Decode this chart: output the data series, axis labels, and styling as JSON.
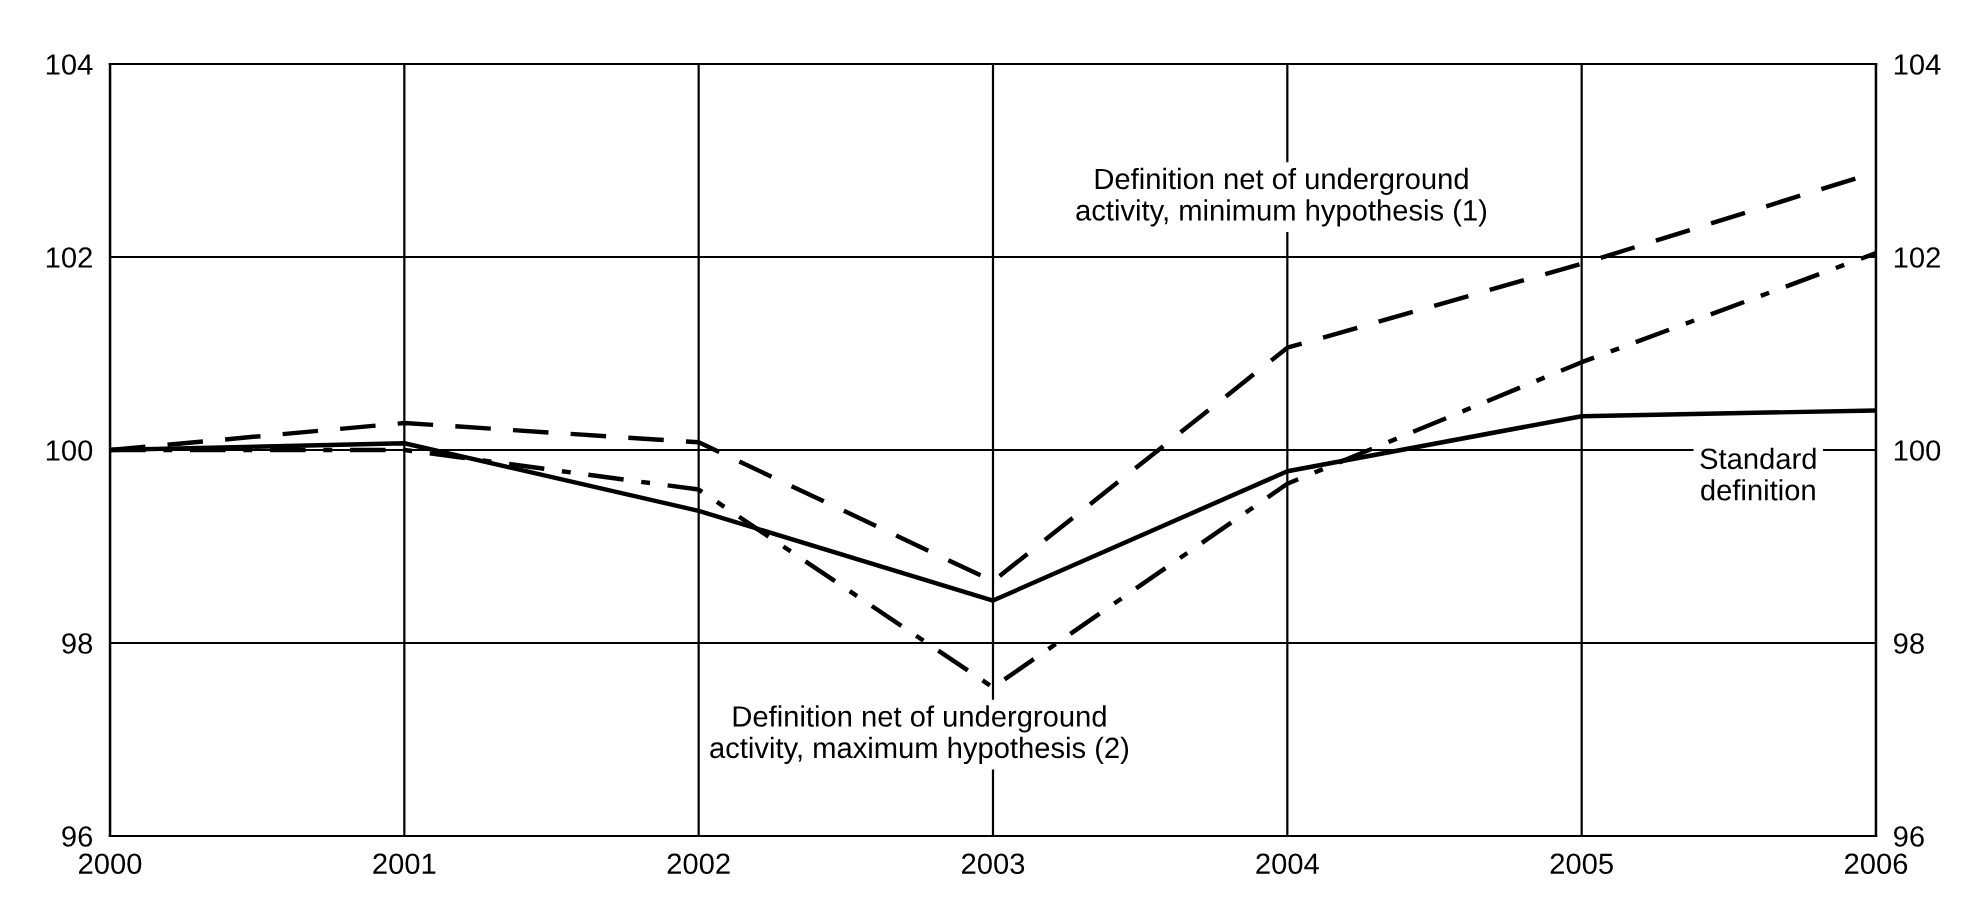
{
  "chart_data": {
    "type": "line",
    "x": [
      2000,
      2001,
      2002,
      2003,
      2004,
      2005,
      2006
    ],
    "series": [
      {
        "name": "Standard definition",
        "color": "#000000",
        "line_style": "solid",
        "values": [
          100,
          100.07,
          99.37,
          98.44,
          99.78,
          100.35,
          100.41
        ]
      },
      {
        "name": "Definition net of underground activity, minimum hypothesis (1)",
        "color": "#000000",
        "line_style": "dashed",
        "values": [
          100,
          100.28,
          100.08,
          98.64,
          101.06,
          101.93,
          102.88
        ]
      },
      {
        "name": "Definition net of underground activity, maximum hypothesis (2)",
        "color": "#000000",
        "line_style": "dashdot",
        "values": [
          100,
          100.0,
          99.59,
          97.54,
          99.65,
          100.91,
          102.04
        ]
      }
    ],
    "xlim": [
      2000,
      2006
    ],
    "xticks": [
      2000,
      2001,
      2002,
      2003,
      2004,
      2005,
      2006
    ],
    "ylim": [
      96,
      104
    ],
    "yticks": [
      96,
      98,
      100,
      102,
      104
    ],
    "y2lim": [
      96,
      104
    ],
    "y2ticks": [
      96,
      98,
      100,
      102,
      104
    ],
    "grid": true,
    "legend": false,
    "marker": "none"
  }
}
